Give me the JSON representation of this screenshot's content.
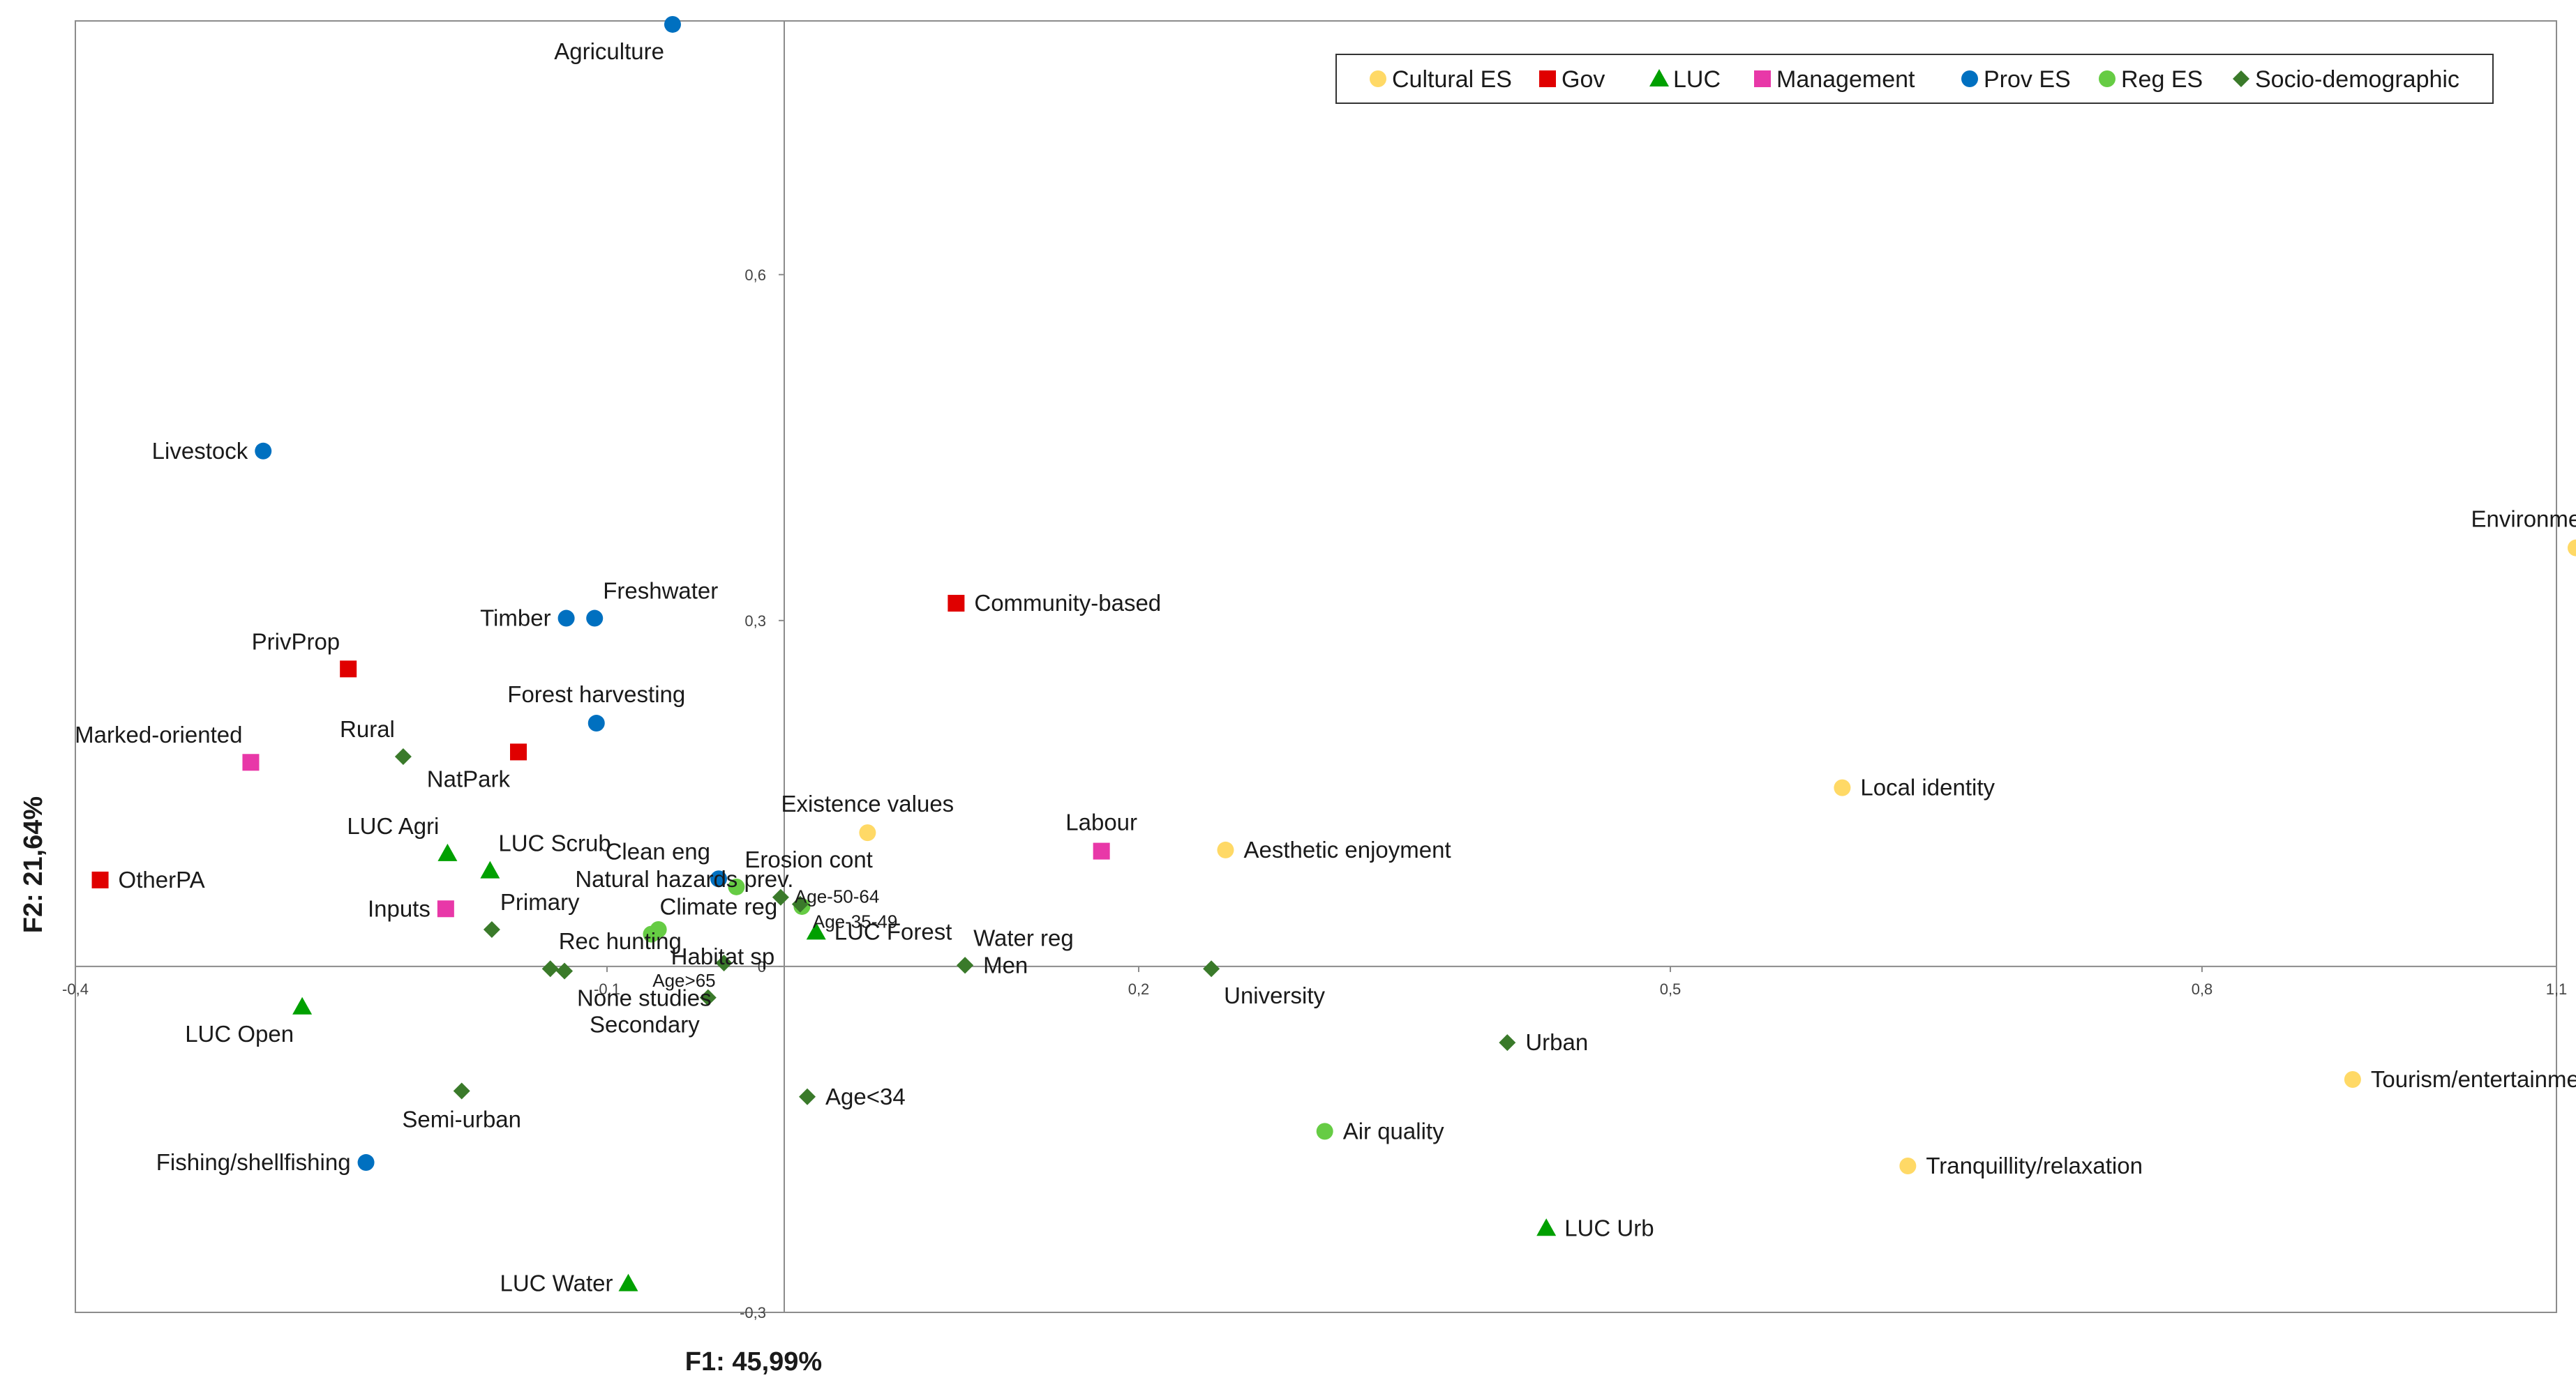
{
  "chart_data": {
    "type": "scatter",
    "title": "",
    "xlabel": "F1: 45,99%",
    "ylabel": "F2: 21,64%",
    "xlim": [
      -0.4,
      1.0
    ],
    "ylim": [
      -0.3,
      0.82
    ],
    "x_ticks": [
      {
        "value": -0.4,
        "label": "-0,4"
      },
      {
        "value": -0.1,
        "label": "-0,1"
      },
      {
        "value": 0.2,
        "label": "0,2"
      },
      {
        "value": 0.5,
        "label": "0,5"
      },
      {
        "value": 0.8,
        "label": "0,8"
      },
      {
        "value": 1.1,
        "label": "1,1"
      }
    ],
    "y_ticks": [
      {
        "value": 0.6,
        "label": "0,6"
      },
      {
        "value": 0.3,
        "label": "0,3"
      },
      {
        "value": 0.0,
        "label": "0"
      },
      {
        "value": -0.3,
        "label": "-0,3"
      }
    ],
    "grid": false,
    "legend_position": "top-right",
    "series": [
      {
        "name": "Cultural ES",
        "marker": "circle",
        "color": "#FFD966",
        "points": [
          {
            "label": "Environmental educ.",
            "x": 1.011,
            "y": 0.363,
            "anchor": "above"
          },
          {
            "label": "Local identity",
            "x": 0.597,
            "y": 0.155,
            "anchor": "right"
          },
          {
            "label": "Existence values",
            "x": 0.047,
            "y": 0.116,
            "anchor": "above"
          },
          {
            "label": "Aesthetic enjoyment",
            "x": 0.249,
            "y": 0.101,
            "anchor": "right"
          },
          {
            "label": "Tourism/entertainment",
            "x": 0.885,
            "y": -0.098,
            "anchor": "right"
          },
          {
            "label": "Tranquillity/relaxation",
            "x": 0.634,
            "y": -0.173,
            "anchor": "right"
          }
        ]
      },
      {
        "name": "Gov",
        "marker": "square",
        "color": "#E00000",
        "points": [
          {
            "label": "Community-based",
            "x": 0.097,
            "y": 0.315,
            "anchor": "right"
          },
          {
            "label": "PrivProp",
            "x": -0.246,
            "y": 0.258,
            "anchor": "above-left"
          },
          {
            "label": "NatPark",
            "x": -0.15,
            "y": 0.186,
            "anchor": "below-left"
          },
          {
            "label": "OtherPA",
            "x": -0.386,
            "y": 0.075,
            "anchor": "right"
          }
        ]
      },
      {
        "name": "LUC",
        "marker": "triangle",
        "color": "#00A000",
        "points": [
          {
            "label": "LUC Agri",
            "x": -0.19,
            "y": 0.098,
            "anchor": "above-left"
          },
          {
            "label": "LUC Scrub",
            "x": -0.166,
            "y": 0.083,
            "anchor": "above-right"
          },
          {
            "label": "LUC Forest",
            "x": 0.018,
            "y": 0.03,
            "anchor": "right"
          },
          {
            "label": "LUC Open",
            "x": -0.272,
            "y": -0.035,
            "anchor": "below-left"
          },
          {
            "label": "LUC Urb",
            "x": 0.43,
            "y": -0.227,
            "anchor": "right"
          },
          {
            "label": "LUC Water",
            "x": -0.088,
            "y": -0.275,
            "anchor": "left"
          }
        ]
      },
      {
        "name": "Management",
        "marker": "square",
        "color": "#E838A8",
        "points": [
          {
            "label": "Marked-oriented",
            "x": -0.301,
            "y": 0.177,
            "anchor": "above-left"
          },
          {
            "label": "Inputs",
            "x": -0.191,
            "y": 0.05,
            "anchor": "left"
          },
          {
            "label": "Labour",
            "x": 0.179,
            "y": 0.1,
            "anchor": "above"
          }
        ]
      },
      {
        "name": "Prov ES",
        "marker": "circle",
        "color": "#0070C0",
        "points": [
          {
            "label": "Agriculture",
            "x": -0.063,
            "y": 0.817,
            "anchor": "below-left"
          },
          {
            "label": "Livestock",
            "x": -0.294,
            "y": 0.447,
            "anchor": "left"
          },
          {
            "label": "Timber",
            "x": -0.123,
            "y": 0.302,
            "anchor": "left"
          },
          {
            "label": "Freshwater",
            "x": -0.107,
            "y": 0.302,
            "anchor": "above-right"
          },
          {
            "label": "Forest harvesting",
            "x": -0.106,
            "y": 0.211,
            "anchor": "above"
          },
          {
            "label": "Fishing/shellfishing",
            "x": -0.236,
            "y": -0.17,
            "anchor": "left"
          },
          {
            "label": "Clean eng",
            "x": -0.037,
            "y": 0.076,
            "anchor": "above-left"
          }
        ]
      },
      {
        "name": "Reg ES",
        "marker": "circle",
        "color": "#66CC44",
        "points": [
          {
            "label": "Erosion cont",
            "x": -0.027,
            "y": 0.069,
            "anchor": "above-right"
          },
          {
            "label": "Natural hazards prev.",
            "x": 0.01,
            "y": 0.052,
            "anchor": "above-left"
          },
          {
            "label": "Climate reg",
            "x": -0.075,
            "y": 0.028,
            "anchor": "above-right"
          },
          {
            "label": "Habitat sp",
            "x": -0.071,
            "y": 0.032,
            "anchor": "below-right"
          },
          {
            "label": "Air quality",
            "x": 0.305,
            "y": -0.143,
            "anchor": "right"
          }
        ]
      },
      {
        "name": "Socio-demographic",
        "marker": "diamond",
        "color": "#3A7A2A",
        "points": [
          {
            "label": "Rural",
            "x": -0.215,
            "y": 0.182,
            "anchor": "above-left"
          },
          {
            "label": "Primary",
            "x": -0.165,
            "y": 0.032,
            "anchor": "above-right"
          },
          {
            "label": "Rec hunting",
            "x": -0.132,
            "y": -0.002,
            "anchor": "above-right"
          },
          {
            "label": "None studies",
            "x": -0.124,
            "y": -0.004,
            "anchor": "below-right"
          },
          {
            "label": "Age>65",
            "x": -0.034,
            "y": 0.003,
            "anchor": "below-left-small"
          },
          {
            "label": "Secondary",
            "x": -0.043,
            "y": -0.027,
            "anchor": "below-left"
          },
          {
            "label": "Age-50-64",
            "x": -0.002,
            "y": 0.06,
            "anchor": "right-small"
          },
          {
            "label": "Age-35-49",
            "x": 0.009,
            "y": 0.054,
            "anchor": "below-right-small"
          },
          {
            "label": "Age<34",
            "x": 0.013,
            "y": -0.113,
            "anchor": "right"
          },
          {
            "label": "Men",
            "x": 0.102,
            "y": 0.001,
            "anchor": "right"
          },
          {
            "label": "Water reg",
            "x": 0.102,
            "y": 0.001,
            "anchor": "above-right"
          },
          {
            "label": "University",
            "x": 0.241,
            "y": -0.002,
            "anchor": "below-right"
          },
          {
            "label": "Urban",
            "x": 0.408,
            "y": -0.066,
            "anchor": "right"
          },
          {
            "label": "Semi-urban",
            "x": -0.182,
            "y": -0.108,
            "anchor": "below"
          }
        ]
      }
    ]
  }
}
